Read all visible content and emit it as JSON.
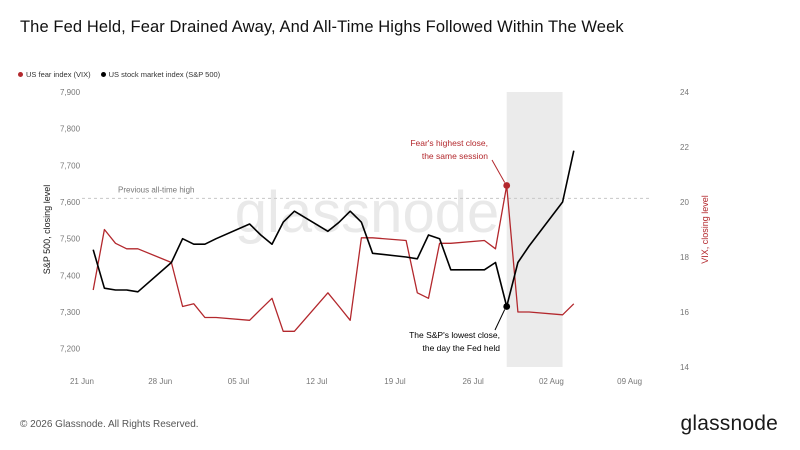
{
  "title": "The Fed Held, Fear Drained Away, And All-Time Highs Followed Within The Week",
  "legend": [
    {
      "label": "US fear index (VIX)",
      "color": "#b3282d"
    },
    {
      "label": "US stock market index (S&P 500)",
      "color": "#000000"
    }
  ],
  "footer": "© 2026 Glassnode. All Rights Reserved.",
  "brand": "glassnode",
  "watermark": "glassnode",
  "chart_data": {
    "type": "line",
    "title": "The Fed Held, Fear Drained Away, And All-Time Highs Followed Within The Week",
    "ylabel_left": "S&P 500, closing level",
    "ylabel_right": "VIX, closing level",
    "ylim_left": [
      7150,
      7900
    ],
    "ylim_right": [
      14,
      24
    ],
    "yticks_left": [
      "7,200",
      "7,300",
      "7,400",
      "7,500",
      "7,600",
      "7,700",
      "7,800",
      "7,900"
    ],
    "yticks_right": [
      "14",
      "16",
      "18",
      "20",
      "22",
      "24"
    ],
    "xticks": [
      "21 Jun",
      "28 Jun",
      "05 Jul",
      "12 Jul",
      "19 Jul",
      "26 Jul",
      "02 Aug",
      "09 Aug"
    ],
    "xlim": [
      "2026-06-21",
      "2026-08-11"
    ],
    "highlight_region": [
      "2026-07-29",
      "2026-08-03"
    ],
    "reference_line": {
      "label": "Previous all-time high",
      "value": 7610
    },
    "grid": true,
    "legend_position": "top-left",
    "series": [
      {
        "name": "US fear index (VIX)",
        "axis": "right",
        "color": "#b3282d",
        "points": [
          [
            "2026-06-22",
            16.8
          ],
          [
            "2026-06-23",
            19.0
          ],
          [
            "2026-06-24",
            18.5
          ],
          [
            "2026-06-25",
            18.3
          ],
          [
            "2026-06-26",
            18.3
          ],
          [
            "2026-06-29",
            17.8
          ],
          [
            "2026-06-30",
            16.2
          ],
          [
            "2026-07-01",
            16.3
          ],
          [
            "2026-07-02",
            15.8
          ],
          [
            "2026-07-03",
            15.8
          ],
          [
            "2026-07-06",
            15.7
          ],
          [
            "2026-07-07",
            16.1
          ],
          [
            "2026-07-08",
            16.5
          ],
          [
            "2026-07-09",
            15.3
          ],
          [
            "2026-07-10",
            15.3
          ],
          [
            "2026-07-13",
            16.7
          ],
          [
            "2026-07-14",
            16.2
          ],
          [
            "2026-07-15",
            15.7
          ],
          [
            "2026-07-16",
            18.7
          ],
          [
            "2026-07-17",
            18.7
          ],
          [
            "2026-07-20",
            18.6
          ],
          [
            "2026-07-21",
            16.7
          ],
          [
            "2026-07-22",
            16.5
          ],
          [
            "2026-07-23",
            18.5
          ],
          [
            "2026-07-24",
            18.5
          ],
          [
            "2026-07-27",
            18.6
          ],
          [
            "2026-07-28",
            18.3
          ],
          [
            "2026-07-29",
            20.6
          ],
          [
            "2026-07-30",
            16.0
          ],
          [
            "2026-07-31",
            16.0
          ],
          [
            "2026-08-03",
            15.9
          ],
          [
            "2026-08-04",
            16.3
          ]
        ]
      },
      {
        "name": "US stock market index (S&P 500)",
        "axis": "left",
        "color": "#000000",
        "points": [
          [
            "2026-06-22",
            7470
          ],
          [
            "2026-06-23",
            7365
          ],
          [
            "2026-06-24",
            7360
          ],
          [
            "2026-06-25",
            7360
          ],
          [
            "2026-06-26",
            7355
          ],
          [
            "2026-06-29",
            7435
          ],
          [
            "2026-06-30",
            7500
          ],
          [
            "2026-07-01",
            7485
          ],
          [
            "2026-07-02",
            7485
          ],
          [
            "2026-07-03",
            7500
          ],
          [
            "2026-07-06",
            7540
          ],
          [
            "2026-07-07",
            7510
          ],
          [
            "2026-07-08",
            7485
          ],
          [
            "2026-07-09",
            7545
          ],
          [
            "2026-07-10",
            7575
          ],
          [
            "2026-07-13",
            7520
          ],
          [
            "2026-07-14",
            7545
          ],
          [
            "2026-07-15",
            7575
          ],
          [
            "2026-07-16",
            7545
          ],
          [
            "2026-07-17",
            7460
          ],
          [
            "2026-07-20",
            7450
          ],
          [
            "2026-07-21",
            7445
          ],
          [
            "2026-07-22",
            7510
          ],
          [
            "2026-07-23",
            7500
          ],
          [
            "2026-07-24",
            7415
          ],
          [
            "2026-07-27",
            7415
          ],
          [
            "2026-07-28",
            7435
          ],
          [
            "2026-07-29",
            7315
          ],
          [
            "2026-07-30",
            7435
          ],
          [
            "2026-07-31",
            7480
          ],
          [
            "2026-08-03",
            7600
          ],
          [
            "2026-08-04",
            7740
          ]
        ]
      }
    ],
    "annotations": [
      {
        "series": "US fear index (VIX)",
        "date": "2026-07-29",
        "value": 20.6,
        "lines": [
          "Fear's highest close,",
          "the same session"
        ],
        "color": "#b3282d"
      },
      {
        "series": "US stock market index (S&P 500)",
        "date": "2026-07-29",
        "value": 7315,
        "lines": [
          "The S&P's lowest close,",
          "the day the Fed held"
        ],
        "color": "#000000"
      }
    ]
  }
}
